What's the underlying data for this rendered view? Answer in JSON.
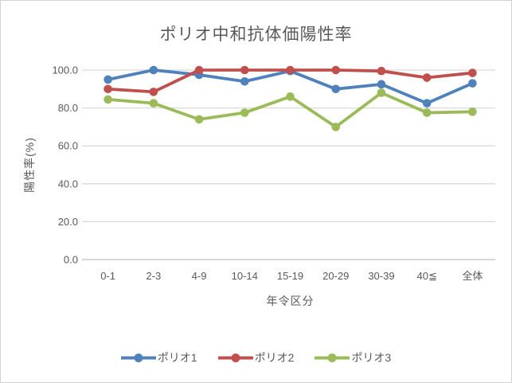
{
  "chart": {
    "title": "ポリオ中和抗体価陽性率"
  },
  "chart_data": {
    "type": "line",
    "title": "ポリオ中和抗体価陽性率",
    "xlabel": "年令区分",
    "ylabel": "陽性率(%)",
    "categories": [
      "0-1",
      "2-3",
      "4-9",
      "10-14",
      "15-19",
      "20-29",
      "30-39",
      "40≦",
      "全体"
    ],
    "series": [
      {
        "name": "ポリオ1",
        "color": "#4F81BD",
        "values": [
          95,
          100,
          97.5,
          94,
          99.5,
          90,
          92.5,
          82.5,
          93
        ]
      },
      {
        "name": "ポリオ2",
        "color": "#C0504D",
        "values": [
          90,
          88.5,
          100,
          100,
          100,
          100,
          99.5,
          96,
          98.5
        ]
      },
      {
        "name": "ポリオ3",
        "color": "#9BBB59",
        "values": [
          84.5,
          82.5,
          74,
          77.5,
          86,
          70,
          88,
          77.5,
          78
        ]
      }
    ],
    "ylim": [
      0,
      100
    ],
    "yticks": [
      0,
      20,
      40,
      60,
      80,
      100
    ],
    "ytick_labels": [
      "0.0",
      "20.0",
      "40.0",
      "60.0",
      "80.0",
      "100.0"
    ],
    "grid": "horizontal",
    "legend_position": "bottom",
    "marker": "circle"
  },
  "colors": {
    "text": "#595959",
    "gridline": "#D9D9D9",
    "axis": "#BFBFBF",
    "border": "#D2D2D2",
    "background": "#FFFFFF"
  }
}
